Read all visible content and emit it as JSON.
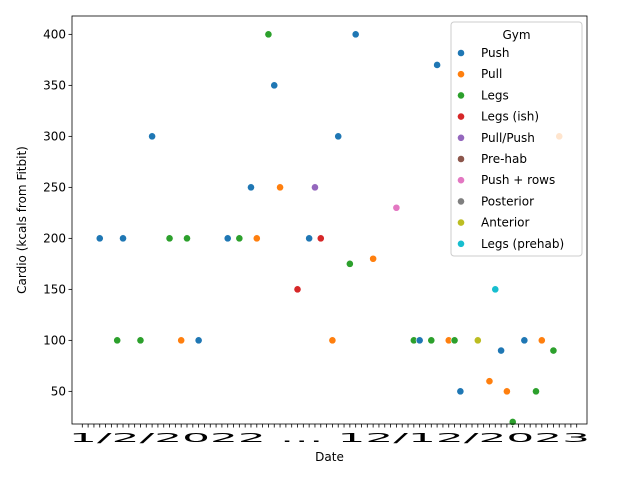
{
  "chart_data": {
    "type": "scatter",
    "title": "",
    "xlabel": "Date",
    "ylabel": "Cardio (kcals from Fitbit)",
    "ylim": [
      18,
      418
    ],
    "yticks": [
      50,
      100,
      150,
      200,
      250,
      300,
      350,
      400
    ],
    "grid": false,
    "x_tick_count": 86,
    "x_tick_text": "1/2/2022 … 12/12/2023",
    "legend": {
      "title": "Gym",
      "placement": "upper right",
      "entries": [
        {
          "name": "Push",
          "color": "#1f77b4"
        },
        {
          "name": "Pull",
          "color": "#ff7f0e"
        },
        {
          "name": "Legs",
          "color": "#2ca02c"
        },
        {
          "name": "Legs (ish)",
          "color": "#d62728"
        },
        {
          "name": "Pull/Push",
          "color": "#9467bd"
        },
        {
          "name": "Pre-hab",
          "color": "#8c564b"
        },
        {
          "name": "Push + rows",
          "color": "#e377c2"
        },
        {
          "name": "Posterior",
          "color": "#7f7f7f"
        },
        {
          "name": "Anterior",
          "color": "#bcbd22"
        },
        {
          "name": "Legs (prehab)",
          "color": "#17becf"
        }
      ]
    },
    "points": [
      {
        "i": 3,
        "y": 200,
        "series": "Push"
      },
      {
        "i": 6,
        "y": 100,
        "series": "Legs"
      },
      {
        "i": 7,
        "y": 200,
        "series": "Push"
      },
      {
        "i": 10,
        "y": 100,
        "series": "Legs"
      },
      {
        "i": 12,
        "y": 300,
        "series": "Push"
      },
      {
        "i": 15,
        "y": 200,
        "series": "Legs"
      },
      {
        "i": 17,
        "y": 100,
        "series": "Pull"
      },
      {
        "i": 18,
        "y": 200,
        "series": "Legs"
      },
      {
        "i": 20,
        "y": 100,
        "series": "Push"
      },
      {
        "i": 25,
        "y": 200,
        "series": "Push"
      },
      {
        "i": 27,
        "y": 200,
        "series": "Legs"
      },
      {
        "i": 29,
        "y": 250,
        "series": "Push"
      },
      {
        "i": 30,
        "y": 200,
        "series": "Pull"
      },
      {
        "i": 32,
        "y": 400,
        "series": "Legs"
      },
      {
        "i": 33,
        "y": 350,
        "series": "Push"
      },
      {
        "i": 34,
        "y": 250,
        "series": "Pull"
      },
      {
        "i": 37,
        "y": 150,
        "series": "Legs (ish)"
      },
      {
        "i": 39,
        "y": 200,
        "series": "Push"
      },
      {
        "i": 40,
        "y": 250,
        "series": "Pull/Push"
      },
      {
        "i": 41,
        "y": 200,
        "series": "Legs (ish)"
      },
      {
        "i": 43,
        "y": 100,
        "series": "Pull"
      },
      {
        "i": 44,
        "y": 300,
        "series": "Push"
      },
      {
        "i": 46,
        "y": 175,
        "series": "Legs"
      },
      {
        "i": 47,
        "y": 400,
        "series": "Push"
      },
      {
        "i": 50,
        "y": 180,
        "series": "Pull"
      },
      {
        "i": 54,
        "y": 230,
        "series": "Push + rows"
      },
      {
        "i": 57,
        "y": 100,
        "series": "Legs"
      },
      {
        "i": 58,
        "y": 100,
        "series": "Push"
      },
      {
        "i": 60,
        "y": 100,
        "series": "Legs"
      },
      {
        "i": 61,
        "y": 370,
        "series": "Push"
      },
      {
        "i": 63,
        "y": 100,
        "series": "Pull"
      },
      {
        "i": 64,
        "y": 100,
        "series": "Legs"
      },
      {
        "i": 65,
        "y": 50,
        "series": "Push"
      },
      {
        "i": 68,
        "y": 100,
        "series": "Anterior"
      },
      {
        "i": 70,
        "y": 60,
        "series": "Pull"
      },
      {
        "i": 71,
        "y": 150,
        "series": "Legs (prehab)"
      },
      {
        "i": 72,
        "y": 90,
        "series": "Push"
      },
      {
        "i": 73,
        "y": 50,
        "series": "Pull"
      },
      {
        "i": 74,
        "y": 20,
        "series": "Legs"
      },
      {
        "i": 76,
        "y": 100,
        "series": "Push"
      },
      {
        "i": 78,
        "y": 50,
        "series": "Legs"
      },
      {
        "i": 79,
        "y": 100,
        "series": "Pull"
      },
      {
        "i": 81,
        "y": 90,
        "series": "Legs"
      },
      {
        "i": 82,
        "y": 300,
        "series": "Pull"
      }
    ]
  }
}
